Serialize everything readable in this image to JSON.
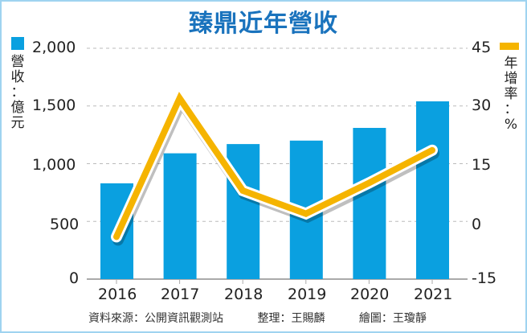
{
  "title": "臻鼎近年營收",
  "left_axis": {
    "label_chars": [
      "營",
      "收",
      "：",
      "億",
      "元"
    ],
    "ticks": [
      "2,000",
      "1,500",
      "1,000",
      "500",
      "0"
    ],
    "legend_color": "#0aa0e0"
  },
  "right_axis": {
    "label_chars": [
      "年",
      "增",
      "率",
      "：",
      "%"
    ],
    "ticks": [
      "45",
      "30",
      "15",
      "0",
      "-15"
    ],
    "legend_color": "#f5b400"
  },
  "x_ticks": [
    "2016",
    "2017",
    "2018",
    "2019",
    "2020",
    "2021"
  ],
  "footer": {
    "source": "資料來源：公開資訊觀測站",
    "editor": "整理：王賜麟",
    "illustrator": "繪圖：王瓊靜"
  },
  "chart_data": {
    "type": "bar+line",
    "title": "臻鼎近年營收",
    "categories": [
      "2016",
      "2017",
      "2018",
      "2019",
      "2020",
      "2021"
    ],
    "series": [
      {
        "name": "營收",
        "unit": "億元",
        "type": "bar",
        "axis": "left",
        "color": "#0aa0e0",
        "values": [
          830,
          1090,
          1170,
          1200,
          1310,
          1540
        ]
      },
      {
        "name": "年增率",
        "unit": "%",
        "type": "line",
        "axis": "right",
        "color": "#f5b400",
        "values": [
          -4,
          32,
          8,
          2,
          10,
          18.5
        ]
      }
    ],
    "ylabel_left": "營收：億元",
    "ylim_left": [
      0,
      2000
    ],
    "ylabel_right": "年增率：%",
    "ylim_right": [
      -15,
      45
    ],
    "grid": true,
    "grid_style": "dashed"
  }
}
